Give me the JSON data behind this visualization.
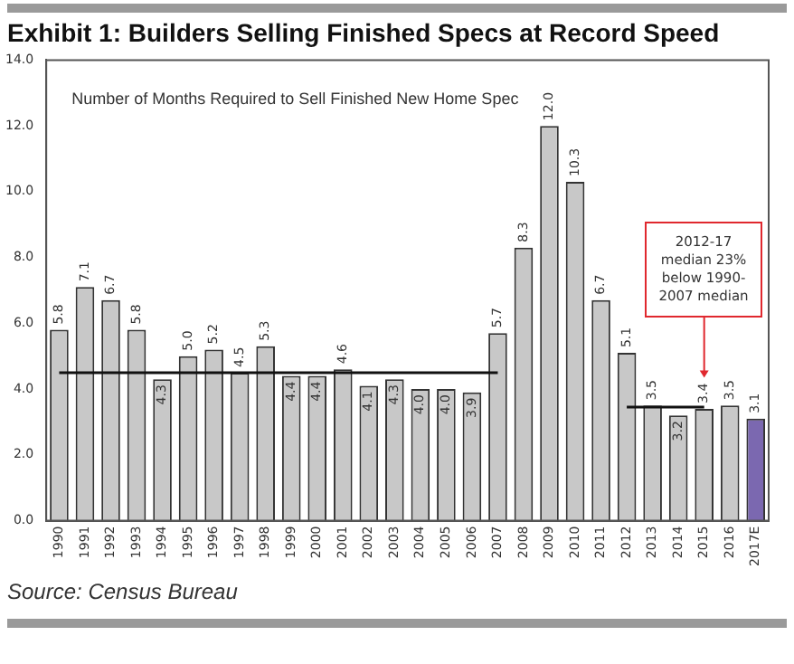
{
  "chart_data": {
    "type": "bar",
    "title": "Exhibit 1: Builders Selling Finished Specs at Record Speed",
    "subtitle": "Number of Months Required to Sell Finished New Home Spec",
    "categories": [
      "1990",
      "1991",
      "1992",
      "1993",
      "1994",
      "1995",
      "1996",
      "1997",
      "1998",
      "1999",
      "2000",
      "2001",
      "2002",
      "2003",
      "2004",
      "2005",
      "2006",
      "2007",
      "2008",
      "2009",
      "2010",
      "2011",
      "2012",
      "2013",
      "2014",
      "2015",
      "2016",
      "2017E"
    ],
    "series": [
      {
        "values": [
          5.8,
          7.1,
          6.7,
          5.8,
          4.3,
          5.0,
          5.2,
          4.5,
          5.3,
          4.4,
          4.4,
          4.6,
          4.1,
          4.3,
          4.0,
          4.0,
          3.9,
          5.7,
          8.3,
          12.0,
          10.3,
          6.7,
          5.1,
          3.5,
          3.2,
          3.4,
          3.5,
          3.1
        ],
        "colors": [
          "#c8c8c8",
          "#c8c8c8",
          "#c8c8c8",
          "#c8c8c8",
          "#c8c8c8",
          "#c8c8c8",
          "#c8c8c8",
          "#c8c8c8",
          "#c8c8c8",
          "#c8c8c8",
          "#c8c8c8",
          "#c8c8c8",
          "#c8c8c8",
          "#c8c8c8",
          "#c8c8c8",
          "#c8c8c8",
          "#c8c8c8",
          "#c8c8c8",
          "#c8c8c8",
          "#c8c8c8",
          "#c8c8c8",
          "#c8c8c8",
          "#c8c8c8",
          "#c8c8c8",
          "#c8c8c8",
          "#c8c8c8",
          "#c8c8c8",
          "#7b68b0"
        ],
        "value_labels": [
          "5.8",
          "7.1",
          "6.7",
          "5.8",
          "4.3",
          "5.0",
          "5.2",
          "4.5",
          "5.3",
          "4.4",
          "4.4",
          "4.6",
          "4.1",
          "4.3",
          "4.0",
          "4.0",
          "3.9",
          "5.7",
          "8.3",
          "12.0",
          "10.3",
          "6.7",
          "5.1",
          "3.5",
          "3.2",
          "3.4",
          "3.5",
          "3.1"
        ]
      },
      {
        "type": "line",
        "color": "#111111",
        "values": [
          4.5,
          4.5,
          4.5,
          4.5,
          4.5,
          4.5,
          4.5,
          4.5,
          4.5,
          4.5,
          4.5,
          4.5,
          4.5,
          4.5,
          4.5,
          4.5,
          4.5,
          4.5,
          null,
          null,
          null,
          null,
          null,
          null,
          null,
          null,
          null,
          null
        ]
      },
      {
        "type": "line",
        "color": "#111111",
        "values": [
          null,
          null,
          null,
          null,
          null,
          null,
          null,
          null,
          null,
          null,
          null,
          null,
          null,
          null,
          null,
          null,
          null,
          null,
          null,
          null,
          null,
          null,
          3.45,
          3.45,
          3.45,
          3.45,
          null,
          null
        ]
      }
    ],
    "ylim": [
      0,
      14
    ],
    "yticks": [
      {
        "value": 0,
        "label": "0.0"
      },
      {
        "value": 2,
        "label": "2.0"
      },
      {
        "value": 4,
        "label": "4.0"
      },
      {
        "value": 6,
        "label": "6.0"
      },
      {
        "value": 8,
        "label": "8.0"
      },
      {
        "value": 10,
        "label": "10.0"
      },
      {
        "value": 12,
        "label": "12.0"
      },
      {
        "value": 14,
        "label": "14.0"
      }
    ],
    "grid": false,
    "legend": false,
    "annotations": [
      "2012-17 median 23% below 1990-2007 median",
      "Source: Census Bureau"
    ]
  }
}
